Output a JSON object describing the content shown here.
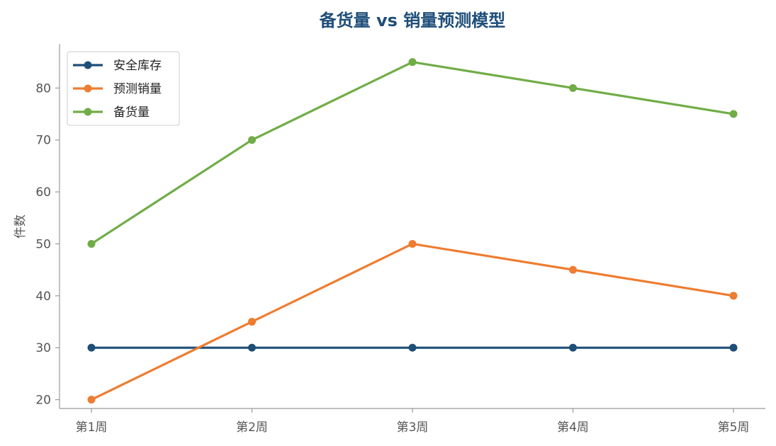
{
  "chart_data": {
    "type": "line",
    "title": "备货量 vs 销量预测模型",
    "xlabel": "",
    "ylabel": "件数",
    "categories": [
      "第1周",
      "第2周",
      "第3周",
      "第4周",
      "第5周"
    ],
    "ylim": [
      18.3,
      88.5
    ],
    "yticks": [
      20,
      30,
      40,
      50,
      60,
      70,
      80
    ],
    "grid": false,
    "legend_position": "top-left",
    "series": [
      {
        "name": "安全库存",
        "color": "#1f4e79",
        "values": [
          30,
          30,
          30,
          30,
          30
        ]
      },
      {
        "name": "预测销量",
        "color": "#ed7d31",
        "values": [
          20,
          35,
          50,
          45,
          40
        ]
      },
      {
        "name": "备货量",
        "color": "#70ad47",
        "values": [
          50,
          70,
          85,
          80,
          75
        ]
      }
    ]
  }
}
